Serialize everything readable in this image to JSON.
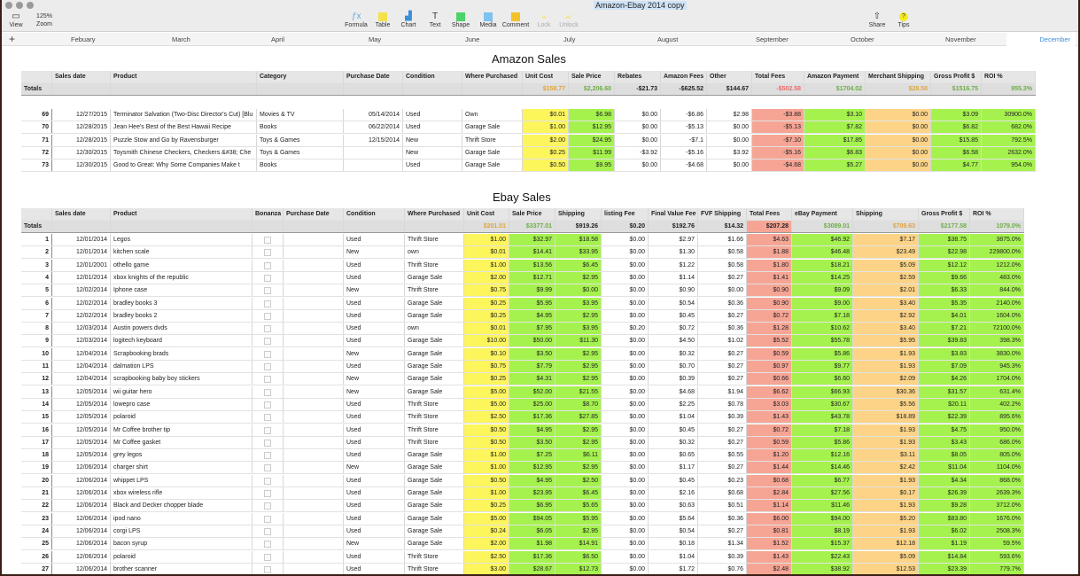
{
  "window": {
    "title": "Amazon-Ebay 2014 copy"
  },
  "toolbar": {
    "view": "View",
    "zoom_value": "125%",
    "zoom": "Zoom",
    "formula": "Formula",
    "table": "Table",
    "chart": "Chart",
    "text": "Text",
    "shape": "Shape",
    "media": "Media",
    "comment": "Comment",
    "lock": "Lock",
    "unlock": "Unlock",
    "share": "Share",
    "tips": "Tips"
  },
  "sheets": [
    "Febuary",
    "March",
    "April",
    "May",
    "June",
    "July",
    "August",
    "September",
    "October",
    "November",
    "December"
  ],
  "active_sheet": "December",
  "colors": {
    "unit_cost": "#fdf55c",
    "positive": "#a5f24e",
    "fees": "#f6a595",
    "shipping": "#fdd487",
    "accent": "#3a8fd9"
  },
  "amazon": {
    "title": "Amazon Sales",
    "headers": [
      "",
      "Sales date",
      "Product",
      "Category",
      "Purchase Date",
      "Condition",
      "Where Purchased",
      "Unit Cost",
      "Sale Price",
      "Rebates",
      "Amazon Fees",
      "Other",
      "Total Fees",
      "Amazon Payment",
      "Merchant Shipping",
      "Gross Profit $",
      "ROI %"
    ],
    "totals": [
      "Totals",
      "",
      "",
      "",
      "",
      "",
      "",
      "$158.77",
      "$2,206.60",
      "-$21.73",
      "-$625.52",
      "$144.67",
      "-$502.58",
      "$1704.02",
      "$28.50",
      "$1516.75",
      "955.3%"
    ],
    "rows": [
      [
        "69",
        "12/27/2015",
        "Terminator Salvation (Two-Disc Director's Cut) [Blu",
        "Movies & TV",
        "05/14/2014",
        "Used",
        "Own",
        "$0.01",
        "$6.98",
        "$0.00",
        "-$6.86",
        "$2.98",
        "-$3.88",
        "$3.10",
        "$0.00",
        "$3.09",
        "30900.0%"
      ],
      [
        "70",
        "12/28/2015",
        "Jean Hee's Best of the Best Hawaii Recipe",
        "Books",
        "06/22/2014",
        "Used",
        "Garage Sale",
        "$1.00",
        "$12.95",
        "$0.00",
        "-$5.13",
        "$0.00",
        "-$5.13",
        "$7.82",
        "$0.00",
        "$6.82",
        "682.0%"
      ],
      [
        "71",
        "12/28/2015",
        "Puzzle Stow and Go by Ravensburger",
        "Toys & Games",
        "12/15/2014",
        "New",
        "Thrift Store",
        "$2.00",
        "$24.95",
        "$0.00",
        "-$7.1",
        "$0.00",
        "-$7.10",
        "$17.85",
        "$0.00",
        "$15.85",
        "792.5%"
      ],
      [
        "72",
        "12/30/2015",
        "Toysmith Chinese Checkers, Checkers &#38; Che",
        "Toys & Games",
        "",
        "New",
        "Garage Sale",
        "$0.25",
        "$11.99",
        "-$3.92",
        "-$5.16",
        "$3.92",
        "-$5.16",
        "$6.83",
        "$0.00",
        "$6.58",
        "2632.0%"
      ],
      [
        "73",
        "12/30/2015",
        "Good to Great: Why Some Companies Make t",
        "Books",
        "",
        "Used",
        "Garage Sale",
        "$0.50",
        "$9.95",
        "$0.00",
        "-$4.68",
        "$0.00",
        "-$4.68",
        "$5.27",
        "$0.00",
        "$4.77",
        "954.0%"
      ]
    ]
  },
  "ebay": {
    "title": "Ebay Sales",
    "headers": [
      "",
      "Sales date",
      "Product",
      "Bonanza",
      "Purchase Date",
      "Condition",
      "Where Purchased",
      "Unit Cost",
      "Sale Price",
      "Shipping",
      "listing Fee",
      "Final Value Fee",
      "FVF Shipping",
      "Total Fees",
      "eBay Payment",
      "Shipping",
      "Gross Profit $",
      "ROI %"
    ],
    "totals": [
      "Totals",
      "",
      "",
      "",
      "",
      "",
      "",
      "$201.01",
      "$3377.01",
      "$919.26",
      "$0.20",
      "$192.76",
      "$14.32",
      "$207.28",
      "$3089.01",
      "$709.63",
      "$2177.58",
      "1079.0%"
    ],
    "rows": [
      [
        "1",
        "12/01/2014",
        "Legos",
        "",
        "",
        "Used",
        "Thrift Store",
        "$1.00",
        "$32.97",
        "$18.58",
        "$0.00",
        "$2.97",
        "$1.66",
        "$4.63",
        "$46.92",
        "$7.17",
        "$38.75",
        "3875.0%"
      ],
      [
        "2",
        "12/01/2014",
        "kitchen scale",
        "",
        "",
        "New",
        "own",
        "$0.01",
        "$14.41",
        "$33.95",
        "$0.00",
        "$1.30",
        "$0.58",
        "$1.88",
        "$46.48",
        "$23.49",
        "$22.98",
        "229800.0%"
      ],
      [
        "3",
        "12/01/2001",
        "othello game",
        "",
        "",
        "Used",
        "Thrift Store",
        "$1.00",
        "$13.56",
        "$6.45",
        "$0.00",
        "$1.22",
        "$0.58",
        "$1.80",
        "$18.21",
        "$5.09",
        "$12.12",
        "1212.0%"
      ],
      [
        "4",
        "12/01/2014",
        "xbox knights of the republic",
        "",
        "",
        "Used",
        "Garage Sale",
        "$2.00",
        "$12.71",
        "$2.95",
        "$0.00",
        "$1.14",
        "$0.27",
        "$1.41",
        "$14.25",
        "$2.59",
        "$9.66",
        "483.0%"
      ],
      [
        "5",
        "12/02/2014",
        "Iphone case",
        "",
        "",
        "New",
        "Thrift Store",
        "$0.75",
        "$9.99",
        "$0.00",
        "$0.00",
        "$0.90",
        "$0.00",
        "$0.90",
        "$9.09",
        "$2.01",
        "$6.33",
        "844.0%"
      ],
      [
        "6",
        "12/02/2014",
        "bradley books 3",
        "",
        "",
        "Used",
        "Garage Sale",
        "$0.25",
        "$5.95",
        "$3.95",
        "$0.00",
        "$0.54",
        "$0.36",
        "$0.90",
        "$9.00",
        "$3.40",
        "$5.35",
        "2140.0%"
      ],
      [
        "7",
        "12/02/2014",
        "bradley books 2",
        "",
        "",
        "Used",
        "Garage Sale",
        "$0.25",
        "$4.95",
        "$2.95",
        "$0.00",
        "$0.45",
        "$0.27",
        "$0.72",
        "$7.18",
        "$2.92",
        "$4.01",
        "1604.0%"
      ],
      [
        "8",
        "12/03/2014",
        "Austin powers dvds",
        "",
        "",
        "Used",
        "own",
        "$0.01",
        "$7.95",
        "$3.95",
        "$0.20",
        "$0.72",
        "$0.36",
        "$1.28",
        "$10.62",
        "$3.40",
        "$7.21",
        "72100.0%"
      ],
      [
        "9",
        "12/03/2014",
        "logitech keyboard",
        "",
        "",
        "Used",
        "Garage Sale",
        "$10.00",
        "$50.00",
        "$11.30",
        "$0.00",
        "$4.50",
        "$1.02",
        "$5.52",
        "$55.78",
        "$5.95",
        "$39.83",
        "398.3%"
      ],
      [
        "10",
        "12/04/2014",
        "Scrapbooking brads",
        "",
        "",
        "New",
        "Garage Sale",
        "$0.10",
        "$3.50",
        "$2.95",
        "$0.00",
        "$0.32",
        "$0.27",
        "$0.59",
        "$5.86",
        "$1.93",
        "$3.83",
        "3830.0%"
      ],
      [
        "11",
        "12/04/2014",
        "dalmation LPS",
        "",
        "",
        "Used",
        "Garage Sale",
        "$0.75",
        "$7.79",
        "$2.95",
        "$0.00",
        "$0.70",
        "$0.27",
        "$0.97",
        "$9.77",
        "$1.93",
        "$7.09",
        "945.3%"
      ],
      [
        "12",
        "12/04/2014",
        "scrapbooking baby boy stickers",
        "",
        "",
        "New",
        "Garage Sale",
        "$0.25",
        "$4.31",
        "$2.95",
        "$0.00",
        "$0.39",
        "$0.27",
        "$0.66",
        "$6.60",
        "$2.09",
        "$4.26",
        "1704.0%"
      ],
      [
        "13",
        "12/05/2014",
        "wii guitar hero",
        "",
        "",
        "New",
        "Garage Sale",
        "$5.00",
        "$52.00",
        "$21.55",
        "$0.00",
        "$4.68",
        "$1.94",
        "$6.62",
        "$66.93",
        "$30.36",
        "$31.57",
        "631.4%"
      ],
      [
        "14",
        "12/05/2014",
        "lowepro case",
        "",
        "",
        "Used",
        "Thrift Store",
        "$5.00",
        "$25.00",
        "$8.70",
        "$0.00",
        "$2.25",
        "$0.78",
        "$3.03",
        "$30.67",
        "$5.56",
        "$20.11",
        "402.2%"
      ],
      [
        "15",
        "12/05/2014",
        "polaroid",
        "",
        "",
        "Used",
        "Thrift Store",
        "$2.50",
        "$17.36",
        "$27.85",
        "$0.00",
        "$1.04",
        "$0.39",
        "$1.43",
        "$43.78",
        "$18.89",
        "$22.39",
        "895.6%"
      ],
      [
        "16",
        "12/05/2014",
        "Mr Coffee brother tip",
        "",
        "",
        "Used",
        "Thrift Store",
        "$0.50",
        "$4.95",
        "$2.95",
        "$0.00",
        "$0.45",
        "$0.27",
        "$0.72",
        "$7.18",
        "$1.93",
        "$4.75",
        "950.0%"
      ],
      [
        "17",
        "12/05/2014",
        "Mr Coffee gasket",
        "",
        "",
        "Used",
        "Thrift Store",
        "$0.50",
        "$3.50",
        "$2.95",
        "$0.00",
        "$0.32",
        "$0.27",
        "$0.59",
        "$5.86",
        "$1.93",
        "$3.43",
        "686.0%"
      ],
      [
        "18",
        "12/05/2014",
        "grey legos",
        "",
        "",
        "Used",
        "Garage Sale",
        "$1.00",
        "$7.25",
        "$6.11",
        "$0.00",
        "$0.65",
        "$0.55",
        "$1.20",
        "$12.16",
        "$3.11",
        "$8.05",
        "805.0%"
      ],
      [
        "19",
        "12/06/2014",
        "charger shirt",
        "",
        "",
        "New",
        "Garage Sale",
        "$1.00",
        "$12.95",
        "$2.95",
        "$0.00",
        "$1.17",
        "$0.27",
        "$1.44",
        "$14.46",
        "$2.42",
        "$11.04",
        "1104.0%"
      ],
      [
        "20",
        "12/06/2014",
        "whippet LPS",
        "",
        "",
        "Used",
        "Garage Sale",
        "$0.50",
        "$4.95",
        "$2.50",
        "$0.00",
        "$0.45",
        "$0.23",
        "$0.68",
        "$6.77",
        "$1.93",
        "$4.34",
        "868.0%"
      ],
      [
        "21",
        "12/06/2014",
        "xbox wireless rifle",
        "",
        "",
        "Used",
        "Garage Sale",
        "$1.00",
        "$23.95",
        "$6.45",
        "$0.00",
        "$2.16",
        "$0.68",
        "$2.84",
        "$27.56",
        "$0.17",
        "$26.39",
        "2639.3%"
      ],
      [
        "22",
        "12/06/2014",
        "Black and Decker chopper blade",
        "",
        "",
        "Used",
        "Garage Sale",
        "$0.25",
        "$6.95",
        "$5.65",
        "$0.00",
        "$0.63",
        "$0.51",
        "$1.14",
        "$11.46",
        "$1.93",
        "$9.28",
        "3712.0%"
      ],
      [
        "23",
        "12/06/2014",
        "ipod nano",
        "",
        "",
        "Used",
        "Garage Sale",
        "$5.00",
        "$94.05",
        "$5.95",
        "$0.00",
        "$5.64",
        "$0.36",
        "$6.00",
        "$94.00",
        "$5.20",
        "$83.80",
        "1676.0%"
      ],
      [
        "24",
        "12/06/2014",
        "corgi LPS",
        "",
        "",
        "Used",
        "Garage Sale",
        "$0.24",
        "$6.05",
        "$2.95",
        "$0.00",
        "$0.54",
        "$0.27",
        "$0.81",
        "$8.19",
        "$1.93",
        "$6.02",
        "2508.3%"
      ],
      [
        "25",
        "12/06/2014",
        "bacon syrup",
        "",
        "",
        "New",
        "Garage Sale",
        "$2.00",
        "$1.98",
        "$14.91",
        "$0.00",
        "$0.18",
        "$1.34",
        "$1.52",
        "$15.37",
        "$12.18",
        "$1.19",
        "59.5%"
      ],
      [
        "26",
        "12/06/2014",
        "polaroid",
        "",
        "",
        "Used",
        "Thrift Store",
        "$2.50",
        "$17.36",
        "$6.50",
        "$0.00",
        "$1.04",
        "$0.39",
        "$1.43",
        "$22.43",
        "$5.09",
        "$14.84",
        "593.6%"
      ],
      [
        "27",
        "12/06/2014",
        "brother scanner",
        "",
        "",
        "Used",
        "Thrift Store",
        "$3.00",
        "$28.67",
        "$12.73",
        "$0.00",
        "$1.72",
        "$0.76",
        "$2.48",
        "$38.92",
        "$12.53",
        "$23.39",
        "779.7%"
      ]
    ]
  }
}
